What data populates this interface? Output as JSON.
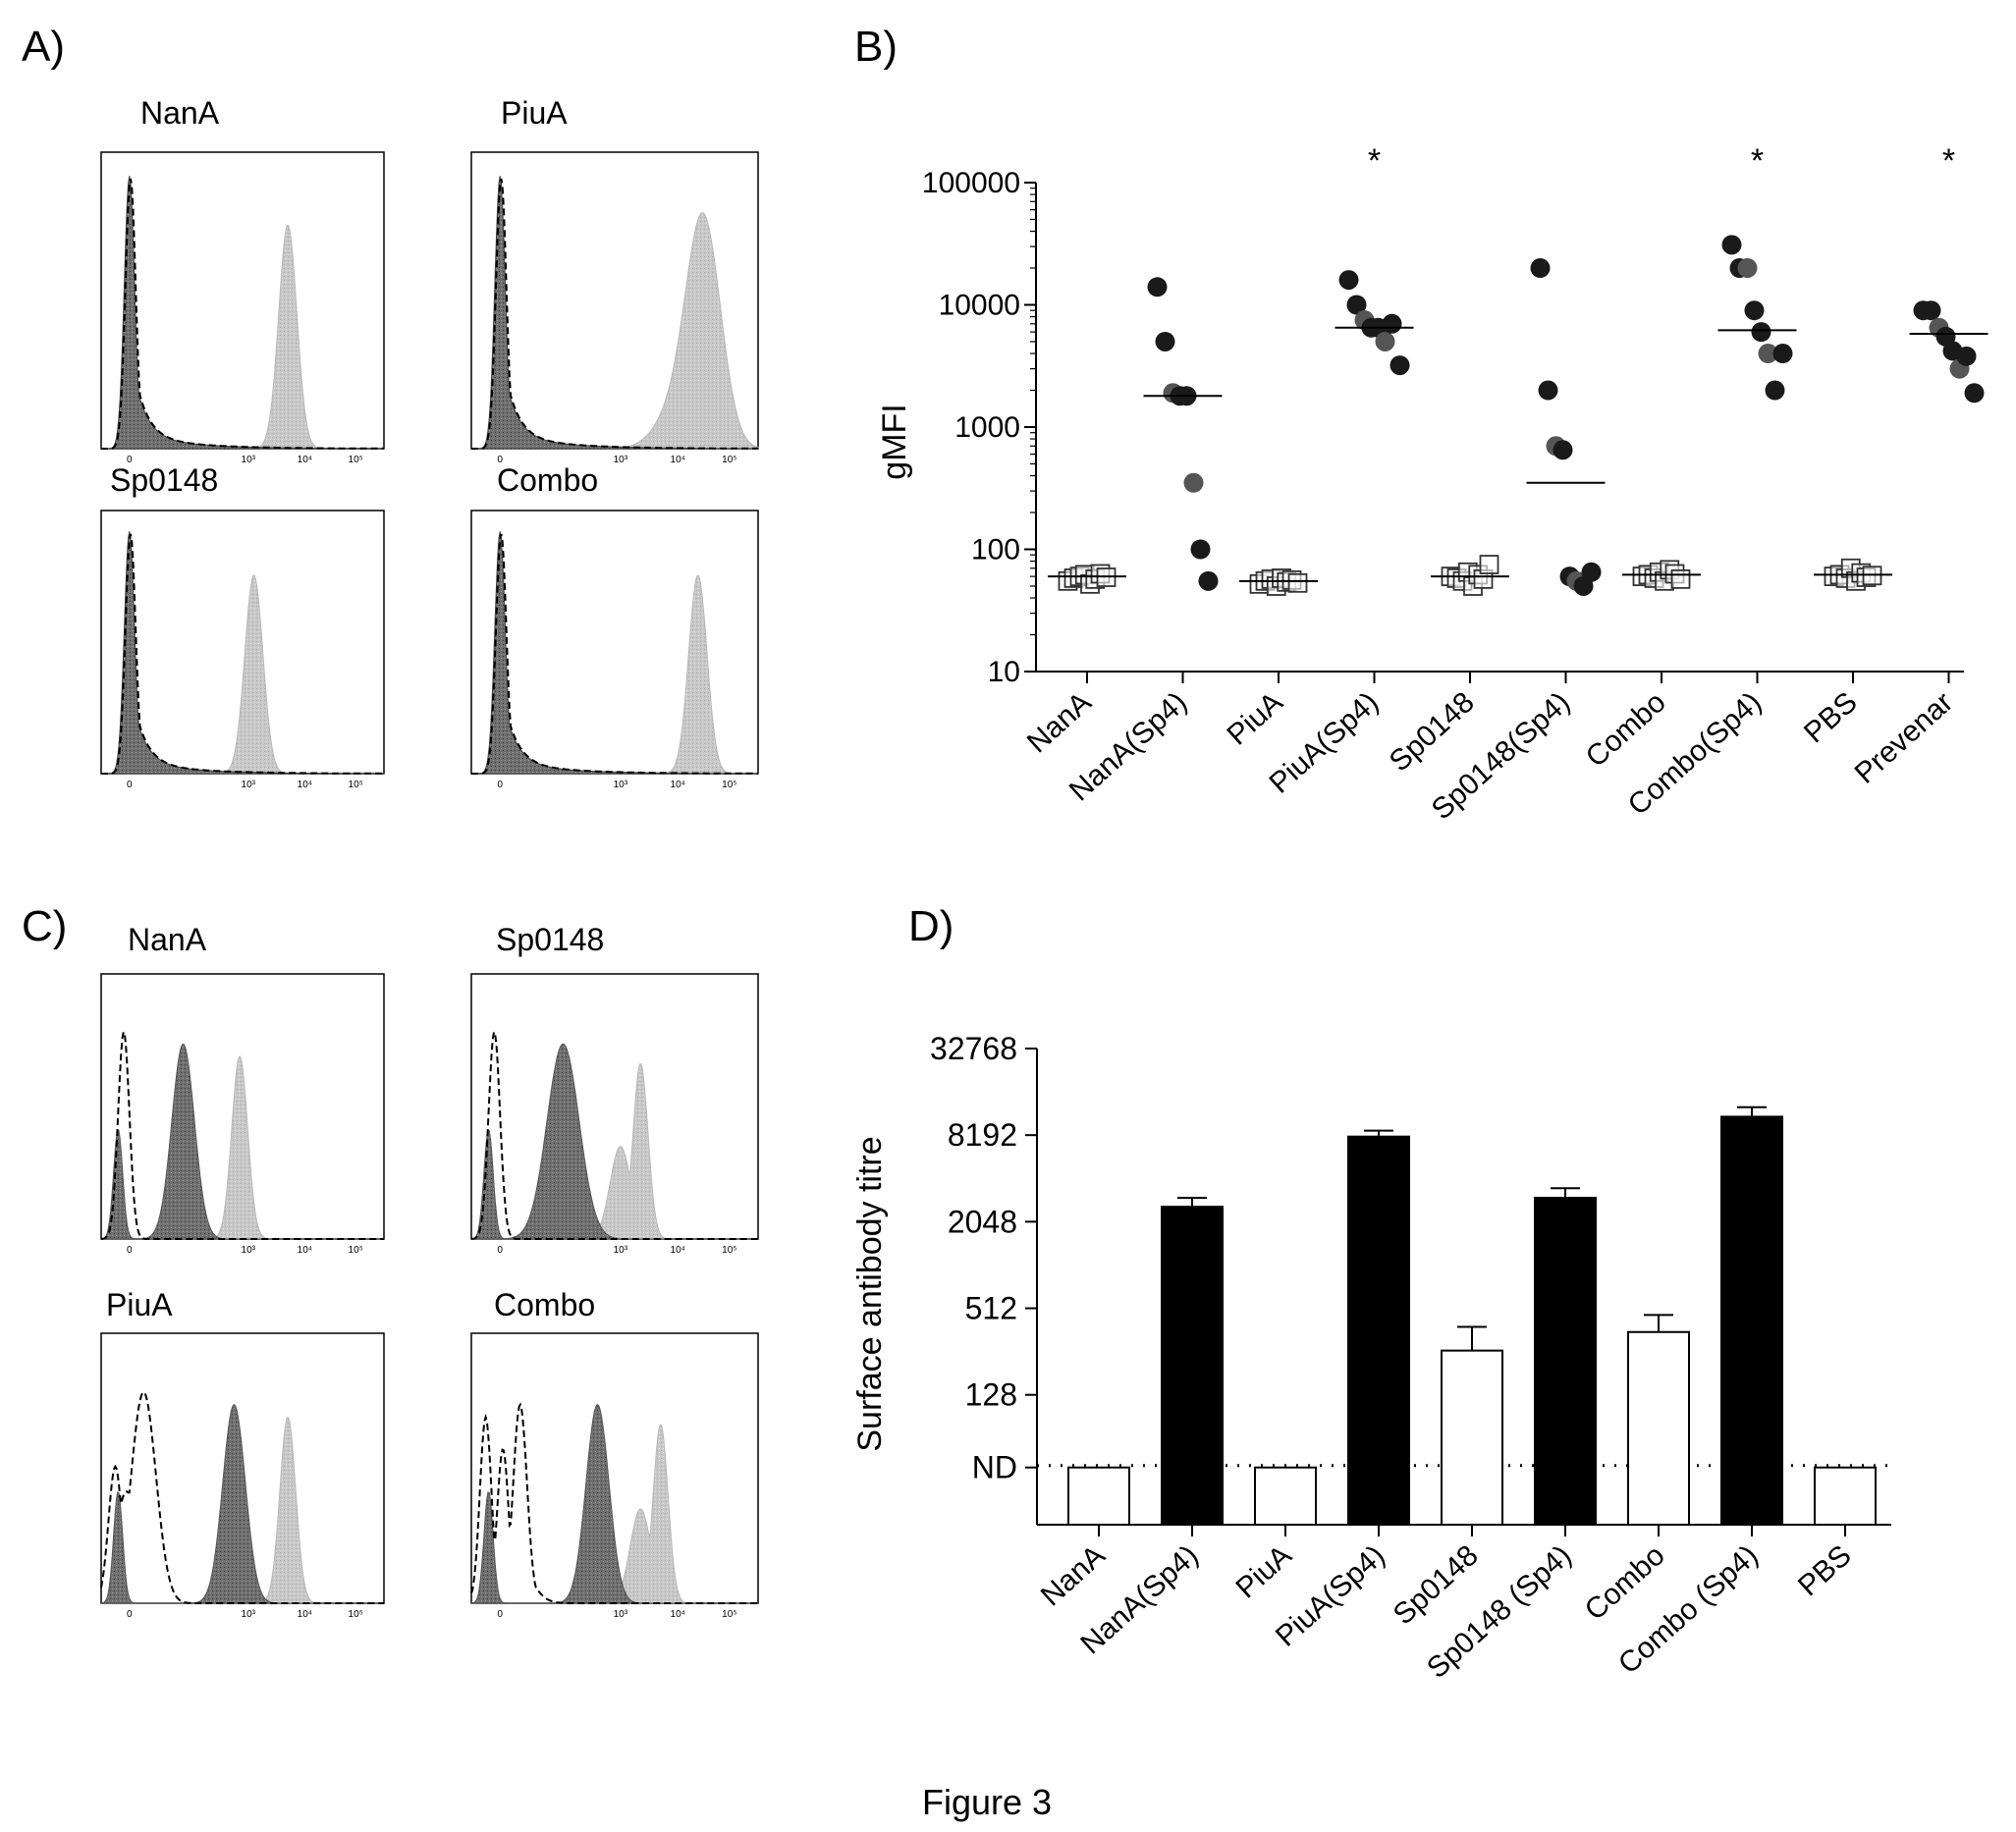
{
  "figure": {
    "caption": "Figure 3"
  },
  "panels": {
    "A": {
      "label": "A)",
      "histograms": [
        {
          "title": "NanA",
          "tick_labels": [
            "0",
            "10³",
            "10⁴",
            "10⁵"
          ],
          "peaks": {
            "neg": 0.5,
            "pos": 3.3
          },
          "pos_shape": "single"
        },
        {
          "title": "PiuA",
          "tick_labels": [
            "0",
            "10³",
            "10⁴",
            "10⁵"
          ],
          "peaks": {
            "neg": 0.5,
            "pos": 4.05
          },
          "pos_shape": "broad"
        },
        {
          "title": "Sp0148",
          "tick_labels": [
            "0",
            "10³",
            "10⁴",
            "10⁵"
          ],
          "peaks": {
            "neg": 0.5,
            "pos": 2.7
          },
          "pos_shape": "single"
        },
        {
          "title": "Combo",
          "tick_labels": [
            "0",
            "10³",
            "10⁴",
            "10⁵"
          ],
          "peaks": {
            "neg": 0.5,
            "pos": 3.95
          },
          "pos_shape": "single"
        }
      ]
    },
    "B": {
      "label": "B)",
      "chart_data": {
        "type": "scatter",
        "ylabel": "gMFI",
        "yscale": "log",
        "ylim": [
          10,
          100000
        ],
        "yticks": [
          "10",
          "100",
          "1000",
          "10000",
          "100000"
        ],
        "categories": [
          "NanA",
          "NanA(Sp4)",
          "PiuA",
          "PiuA(Sp4)",
          "Sp0148",
          "Sp0148(Sp4)",
          "Combo",
          "Combo(Sp4)",
          "PBS",
          "Prevenar"
        ],
        "markers": [
          "open-square",
          "filled-circle",
          "open-square",
          "filled-circle",
          "open-square",
          "filled-circle",
          "open-square",
          "filled-circle",
          "open-square",
          "filled-circle"
        ],
        "significance": [
          "",
          "",
          "",
          "*",
          "",
          "",
          "",
          "*",
          "",
          "*"
        ],
        "medians": [
          60,
          1800,
          55,
          6500,
          60,
          350,
          62,
          6200,
          62,
          5800
        ],
        "points": [
          [
            55,
            58,
            60,
            62,
            52,
            57,
            63,
            59
          ],
          [
            14000,
            5000,
            1900,
            1800,
            1800,
            350,
            100,
            55
          ],
          [
            52,
            55,
            57,
            50,
            58,
            54,
            56,
            53
          ],
          [
            16000,
            10000,
            7500,
            6500,
            6500,
            5000,
            7000,
            3200
          ],
          [
            60,
            58,
            55,
            65,
            50,
            62,
            57,
            75
          ],
          [
            20000,
            2000,
            700,
            650,
            60,
            55,
            50,
            65
          ],
          [
            60,
            62,
            58,
            65,
            55,
            68,
            63,
            57
          ],
          [
            31000,
            20000,
            20000,
            9000,
            6000,
            4000,
            2000,
            4000
          ],
          [
            60,
            62,
            58,
            70,
            55,
            64,
            59,
            61
          ],
          [
            9000,
            9000,
            6500,
            5500,
            4200,
            3000,
            3800,
            1900
          ]
        ]
      }
    },
    "C": {
      "label": "C)",
      "histograms": [
        {
          "title": "NanA",
          "tick_labels": [
            "0",
            "10³",
            "10⁴",
            "10⁵"
          ],
          "peaks": {
            "neg": 0.4,
            "mid": 1.45,
            "pos": 2.45
          },
          "pos_shape": "single",
          "neg_shape": "single"
        },
        {
          "title": "Sp0148",
          "tick_labels": [
            "0",
            "10³",
            "10⁴",
            "10⁵"
          ],
          "peaks": {
            "neg": 0.4,
            "mid": 1.6,
            "pos": 2.95
          },
          "pos_shape": "double",
          "neg_shape": "single"
        },
        {
          "title": "PiuA",
          "tick_labels": [
            "0",
            "10³",
            "10⁴",
            "10⁵"
          ],
          "peaks": {
            "neg": 0.15,
            "mid": 2.35,
            "pos": 3.3
          },
          "pos_shape": "single",
          "neg_shape": "broad"
        },
        {
          "title": "Combo",
          "tick_labels": [
            "0",
            "10³",
            "10⁴",
            "10⁵"
          ],
          "peaks": {
            "neg": 0.2,
            "mid": 2.2,
            "pos": 3.3
          },
          "pos_shape": "double",
          "neg_shape": "multi"
        }
      ]
    },
    "D": {
      "label": "D)",
      "chart_data": {
        "type": "bar",
        "ylabel": "Surface antibody titre",
        "yscale": "log2",
        "ylim": [
          16,
          32768
        ],
        "yticks": [
          "ND",
          "128",
          "512",
          "2048",
          "8192",
          "32768"
        ],
        "nd_value": 40,
        "categories": [
          "NanA",
          "NanA(Sp4)",
          "PiuA",
          "PiuA(Sp4)",
          "Sp0148",
          "Sp0148 (Sp4)",
          "Combo",
          "Combo (Sp4)",
          "PBS"
        ],
        "values": [
          40,
          2600,
          40,
          8000,
          260,
          3000,
          350,
          11000,
          40
        ],
        "errors": [
          0,
          3000,
          0,
          8800,
          380,
          3500,
          460,
          12800,
          0
        ],
        "fills": [
          "white",
          "black",
          "white",
          "black",
          "white",
          "black",
          "white",
          "black",
          "white"
        ]
      }
    }
  }
}
